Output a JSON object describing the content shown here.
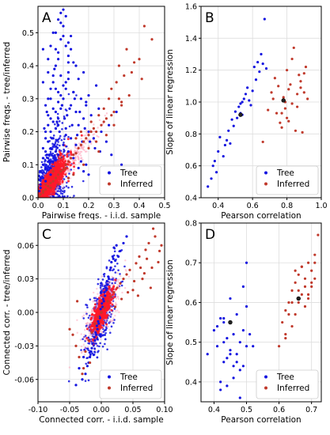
{
  "colors": {
    "tree": "#1414e0",
    "inferred": "#c0392b",
    "inferred_dense": "#ff1a2a",
    "pink_band": "#ff9fb8",
    "mean": "#222222"
  },
  "chart_data": [
    {
      "panel": "A",
      "type": "scatter",
      "xlabel": "Pairwise freqs. - i.i.d. sample",
      "ylabel": "Pairwise freqs. - tree/inferred",
      "xlim": [
        0,
        0.5
      ],
      "ylim": [
        0,
        0.58
      ],
      "xticks": [
        "0.0",
        "0.1",
        "0.2",
        "0.3",
        "0.4",
        "0.5"
      ],
      "yticks": [
        "0.0",
        "0.1",
        "0.2",
        "0.3",
        "0.4",
        "0.5"
      ],
      "legend": [
        "Tree",
        "Inferred"
      ],
      "legend_position": "bottom-right",
      "grid": true,
      "series": [
        {
          "name": "Tree",
          "x": [
            0.005,
            0.01,
            0.02,
            0.03,
            0.04,
            0.05,
            0.06,
            0.07,
            0.08,
            0.09,
            0.1,
            0.11,
            0.12,
            0.13,
            0.14,
            0.15,
            0.16,
            0.18,
            0.2,
            0.22,
            0.01,
            0.02,
            0.03,
            0.04,
            0.05,
            0.06,
            0.07,
            0.08,
            0.09,
            0.1,
            0.12,
            0.02,
            0.03,
            0.04,
            0.05,
            0.06,
            0.07,
            0.08,
            0.09,
            0.1,
            0.11,
            0.13,
            0.15,
            0.17,
            0.19,
            0.21,
            0.25,
            0.02,
            0.04,
            0.05,
            0.07,
            0.09,
            0.1,
            0.12,
            0.14,
            0.03,
            0.05,
            0.06,
            0.08,
            0.1,
            0.11,
            0.04,
            0.06,
            0.07,
            0.09,
            0.02,
            0.05,
            0.08,
            0.12,
            0.03,
            0.04,
            0.06,
            0.1,
            0.01,
            0.05,
            0.07,
            0.11,
            0.04,
            0.08,
            0.06,
            0.09,
            0.03,
            0.07,
            0.13,
            0.16,
            0.2,
            0.24,
            0.28,
            0.08,
            0.12,
            0.18,
            0.23,
            0.31,
            0.11,
            0.14,
            0.19,
            0.02,
            0.015,
            0.035,
            0.055,
            0.075,
            0.095,
            0.115,
            0.135,
            0.155,
            0.175,
            0.045,
            0.065,
            0.085,
            0.105,
            0.125,
            0.145,
            0.165,
            0.185,
            0.205,
            0.225,
            0.245,
            0.27,
            0.29,
            0.33,
            0.36,
            0.025,
            0.035,
            0.05,
            0.065,
            0.08,
            0.095,
            0.11,
            0.12,
            0.13,
            0.14,
            0.15,
            0.16,
            0.17,
            0.18,
            0.19,
            0.2
          ],
          "y": [
            0.02,
            0.04,
            0.06,
            0.09,
            0.12,
            0.15,
            0.18,
            0.21,
            0.24,
            0.27,
            0.3,
            0.33,
            0.36,
            0.28,
            0.32,
            0.26,
            0.22,
            0.24,
            0.2,
            0.18,
            0.08,
            0.1,
            0.14,
            0.17,
            0.2,
            0.23,
            0.26,
            0.29,
            0.31,
            0.34,
            0.38,
            0.15,
            0.2,
            0.25,
            0.3,
            0.35,
            0.4,
            0.44,
            0.48,
            0.52,
            0.55,
            0.45,
            0.4,
            0.3,
            0.28,
            0.25,
            0.2,
            0.35,
            0.42,
            0.46,
            0.5,
            0.53,
            0.57,
            0.47,
            0.41,
            0.05,
            0.07,
            0.11,
            0.13,
            0.16,
            0.19,
            0.22,
            0.27,
            0.33,
            0.37,
            0.12,
            0.24,
            0.32,
            0.43,
            0.18,
            0.3,
            0.37,
            0.49,
            0.03,
            0.09,
            0.14,
            0.21,
            0.38,
            0.42,
            0.5,
            0.56,
            0.28,
            0.45,
            0.49,
            0.36,
            0.31,
            0.27,
            0.22,
            0.54,
            0.41,
            0.38,
            0.34,
            0.26,
            0.46,
            0.32,
            0.29,
            0.45,
            0.06,
            0.13,
            0.18,
            0.23,
            0.28,
            0.25,
            0.22,
            0.19,
            0.17,
            0.11,
            0.16,
            0.2,
            0.24,
            0.27,
            0.3,
            0.26,
            0.21,
            0.17,
            0.15,
            0.14,
            0.17,
            0.13,
            0.1,
            0.08,
            0.21,
            0.26,
            0.33,
            0.39,
            0.22,
            0.28,
            0.35,
            0.14,
            0.18,
            0.12,
            0.16,
            0.09,
            0.11,
            0.08,
            0.1,
            0.07
          ]
        },
        {
          "name": "Inferred",
          "x": [
            0.005,
            0.01,
            0.02,
            0.03,
            0.04,
            0.05,
            0.06,
            0.07,
            0.08,
            0.09,
            0.1,
            0.11,
            0.12,
            0.13,
            0.14,
            0.15,
            0.16,
            0.17,
            0.18,
            0.19,
            0.2,
            0.21,
            0.22,
            0.23,
            0.24,
            0.25,
            0.26,
            0.27,
            0.28,
            0.29,
            0.3,
            0.31,
            0.32,
            0.33,
            0.35,
            0.37,
            0.4,
            0.42,
            0.45,
            0.03,
            0.06,
            0.09,
            0.12,
            0.15,
            0.18,
            0.21,
            0.24,
            0.27,
            0.3,
            0.33,
            0.36,
            0.02,
            0.05,
            0.08,
            0.11,
            0.14,
            0.17,
            0.2,
            0.23,
            0.26,
            0.29,
            0.32,
            0.34,
            0.38,
            0.41
          ],
          "y": [
            0.005,
            0.01,
            0.02,
            0.025,
            0.035,
            0.045,
            0.05,
            0.06,
            0.07,
            0.08,
            0.085,
            0.1,
            0.11,
            0.12,
            0.13,
            0.135,
            0.15,
            0.16,
            0.17,
            0.18,
            0.19,
            0.2,
            0.21,
            0.2,
            0.25,
            0.22,
            0.27,
            0.24,
            0.3,
            0.33,
            0.26,
            0.35,
            0.4,
            0.29,
            0.45,
            0.38,
            0.42,
            0.52,
            0.48,
            0.04,
            0.08,
            0.12,
            0.06,
            0.18,
            0.1,
            0.23,
            0.14,
            0.19,
            0.22,
            0.28,
            0.31,
            0.015,
            0.03,
            0.04,
            0.09,
            0.07,
            0.2,
            0.15,
            0.17,
            0.23,
            0.25,
            0.3,
            0.37,
            0.41,
            0.36
          ]
        }
      ]
    },
    {
      "panel": "B",
      "type": "scatter",
      "xlabel": "Pearson correlation",
      "ylabel": "Slope of linear regression",
      "xlim": [
        0.3,
        1.0
      ],
      "ylim": [
        0.4,
        1.6
      ],
      "xticks": [
        "0.4",
        "0.6",
        "0.8",
        "1.0"
      ],
      "yticks": [
        "0.4",
        "0.6",
        "0.8",
        "1.0",
        "1.2",
        "1.4",
        "1.6"
      ],
      "legend": [
        "Tree",
        "Inferred"
      ],
      "legend_position": "bottom-right",
      "grid": true,
      "series": [
        {
          "name": "Tree",
          "x": [
            0.34,
            0.36,
            0.37,
            0.38,
            0.39,
            0.4,
            0.41,
            0.43,
            0.44,
            0.45,
            0.46,
            0.48,
            0.49,
            0.5,
            0.51,
            0.52,
            0.53,
            0.53,
            0.54,
            0.55,
            0.56,
            0.57,
            0.58,
            0.59,
            0.6,
            0.61,
            0.62,
            0.63,
            0.64,
            0.65,
            0.66,
            0.67,
            0.68,
            0.54,
            0.47
          ],
          "y": [
            0.47,
            0.52,
            0.6,
            0.63,
            0.56,
            0.69,
            0.78,
            0.66,
            0.73,
            0.76,
            0.82,
            0.89,
            0.85,
            0.94,
            0.9,
            0.97,
            0.93,
            0.99,
            1.0,
            1.02,
            1.05,
            1.09,
            1.01,
            0.98,
            1.07,
            1.22,
            1.14,
            1.25,
            1.19,
            1.3,
            1.24,
            1.52,
            1.21,
            0.92,
            0.74
          ]
        },
        {
          "name": "Inferred",
          "x": [
            0.66,
            0.69,
            0.71,
            0.72,
            0.73,
            0.74,
            0.75,
            0.76,
            0.77,
            0.78,
            0.79,
            0.8,
            0.8,
            0.81,
            0.82,
            0.83,
            0.84,
            0.85,
            0.86,
            0.87,
            0.88,
            0.89,
            0.9,
            0.91,
            0.92,
            0.77,
            0.83,
            0.86,
            0.88,
            0.79,
            0.81,
            0.9
          ],
          "y": [
            0.75,
            0.95,
            1.06,
            1.02,
            1.15,
            0.93,
            1.1,
            0.87,
            0.84,
            1.03,
            0.96,
            0.9,
            1.2,
            1.08,
            1.11,
            0.99,
            1.34,
            0.82,
            1.05,
            1.17,
            1.13,
            0.81,
            1.06,
            1.22,
            1.02,
            0.93,
            1.27,
            0.97,
            1.09,
            1.0,
            0.88,
            1.18
          ]
        },
        {
          "name": "",
          "x": [
            0.53,
            0.78
          ],
          "y": [
            0.92,
            1.01
          ]
        }
      ]
    },
    {
      "panel": "C",
      "type": "scatter",
      "xlabel": "Connected corr. - i.i.d. sample",
      "ylabel": "Connected corr. - tree/inferred",
      "xlim": [
        -0.1,
        0.1
      ],
      "ylim": [
        -0.08,
        0.08
      ],
      "xticks": [
        "-0.10",
        "-0.05",
        "0.00",
        "0.05",
        "0.10"
      ],
      "yticks": [
        "-0.06",
        "-0.03",
        "0.00",
        "0.03",
        "0.06"
      ],
      "legend": [
        "Tree",
        "Inferred"
      ],
      "legend_position": "bottom-right",
      "grid": true,
      "series": [
        {
          "name": "Tree",
          "x": [
            -0.02,
            -0.015,
            -0.012,
            -0.01,
            -0.008,
            -0.006,
            -0.004,
            -0.002,
            0,
            0.002,
            0.004,
            0.006,
            0.008,
            0.01,
            0.012,
            0.015,
            0.018,
            -0.025,
            -0.018,
            -0.014,
            -0.009,
            -0.005,
            -0.001,
            0.003,
            0.007,
            0.011,
            0.016,
            0.02,
            -0.03,
            -0.022,
            -0.016,
            -0.011,
            -0.007,
            -0.003,
            0.001,
            0.005,
            0.009,
            0.014,
            0.019,
            0.024,
            -0.035,
            -0.04,
            0.03,
            0.035,
            0.04,
            -0.028,
            0.027
          ],
          "y": [
            -0.045,
            -0.032,
            -0.038,
            -0.025,
            -0.02,
            -0.015,
            -0.01,
            -0.005,
            0,
            0.005,
            0.01,
            0.015,
            0.02,
            0.025,
            0.03,
            0.04,
            0.05,
            -0.055,
            -0.04,
            -0.028,
            -0.018,
            -0.008,
            0.003,
            0.012,
            0.022,
            0.032,
            0.045,
            0.058,
            -0.06,
            -0.048,
            -0.035,
            -0.022,
            -0.012,
            -0.004,
            0.008,
            0.018,
            0.028,
            0.038,
            0.048,
            0.06,
            -0.05,
            -0.065,
            0.055,
            0.062,
            0.068,
            -0.04,
            0.05
          ]
        },
        {
          "name": "Inferred",
          "x": [
            -0.05,
            -0.045,
            -0.04,
            -0.035,
            -0.03,
            -0.025,
            -0.02,
            -0.015,
            -0.01,
            -0.005,
            0,
            0.005,
            0.01,
            0.015,
            0.02,
            0.025,
            0.03,
            0.035,
            0.04,
            0.045,
            0.05,
            0.055,
            0.06,
            0.065,
            0.07,
            0.075,
            0.08,
            0.085,
            0.09,
            0.095,
            -0.038,
            -0.028,
            -0.018,
            0.022,
            0.032,
            0.042,
            0.052,
            0.062,
            0.072,
            0.082,
            0.092,
            0.058,
            0.068,
            0.078
          ],
          "y": [
            -0.015,
            -0.02,
            -0.03,
            -0.04,
            -0.055,
            -0.035,
            -0.025,
            -0.018,
            -0.01,
            -0.004,
            0,
            0.004,
            0.01,
            0.014,
            0.018,
            0.022,
            0.026,
            0.03,
            0.034,
            0.038,
            0.02,
            0.044,
            0.05,
            0.03,
            0.056,
            0.062,
            0.04,
            0.068,
            0.045,
            0.06,
            0.01,
            -0.05,
            -0.045,
            0.005,
            0.012,
            0.018,
            0.028,
            0.04,
            0.048,
            0.075,
            0.055,
            0.015,
            0.035,
            0.022
          ]
        }
      ]
    },
    {
      "panel": "D",
      "type": "scatter",
      "xlabel": "Pearson correlation",
      "ylabel": "Slope of linear regression",
      "xlim": [
        0.36,
        0.73
      ],
      "ylim": [
        0.35,
        0.8
      ],
      "xticks": [
        "0.4",
        "0.5",
        "0.6",
        "0.7"
      ],
      "yticks": [
        "0.4",
        "0.5",
        "0.6",
        "0.7",
        "0.8"
      ],
      "legend": [
        "Tree",
        "Inferred"
      ],
      "legend_position": "bottom-right",
      "grid": true,
      "series": [
        {
          "name": "Tree",
          "x": [
            0.38,
            0.4,
            0.41,
            0.42,
            0.42,
            0.43,
            0.43,
            0.44,
            0.44,
            0.45,
            0.45,
            0.46,
            0.46,
            0.47,
            0.47,
            0.48,
            0.48,
            0.49,
            0.49,
            0.5,
            0.5,
            0.51,
            0.42,
            0.44,
            0.46,
            0.48,
            0.41,
            0.43,
            0.45,
            0.47,
            0.5,
            0.52,
            0.49,
            0.43
          ],
          "y": [
            0.47,
            0.53,
            0.49,
            0.4,
            0.56,
            0.45,
            0.55,
            0.51,
            0.39,
            0.48,
            0.61,
            0.52,
            0.44,
            0.47,
            0.57,
            0.5,
            0.43,
            0.53,
            0.64,
            0.7,
            0.49,
            0.52,
            0.38,
            0.46,
            0.41,
            0.36,
            0.54,
            0.5,
            0.47,
            0.45,
            0.59,
            0.49,
            0.44,
            0.56
          ]
        },
        {
          "name": "Inferred",
          "x": [
            0.6,
            0.61,
            0.62,
            0.62,
            0.63,
            0.64,
            0.64,
            0.65,
            0.65,
            0.66,
            0.66,
            0.67,
            0.67,
            0.68,
            0.68,
            0.69,
            0.69,
            0.7,
            0.7,
            0.71,
            0.71,
            0.72,
            0.63,
            0.66,
            0.68,
            0.7,
            0.65,
            0.67,
            0.69,
            0.71,
            0.62,
            0.64
          ],
          "y": [
            0.49,
            0.55,
            0.52,
            0.58,
            0.6,
            0.54,
            0.63,
            0.57,
            0.65,
            0.6,
            0.67,
            0.62,
            0.69,
            0.64,
            0.66,
            0.61,
            0.7,
            0.64,
            0.68,
            0.66,
            0.72,
            0.77,
            0.57,
            0.63,
            0.59,
            0.65,
            0.68,
            0.69,
            0.62,
            0.7,
            0.51,
            0.6
          ]
        },
        {
          "name": "",
          "x": [
            0.45,
            0.66
          ],
          "y": [
            0.55,
            0.61
          ]
        }
      ]
    }
  ]
}
